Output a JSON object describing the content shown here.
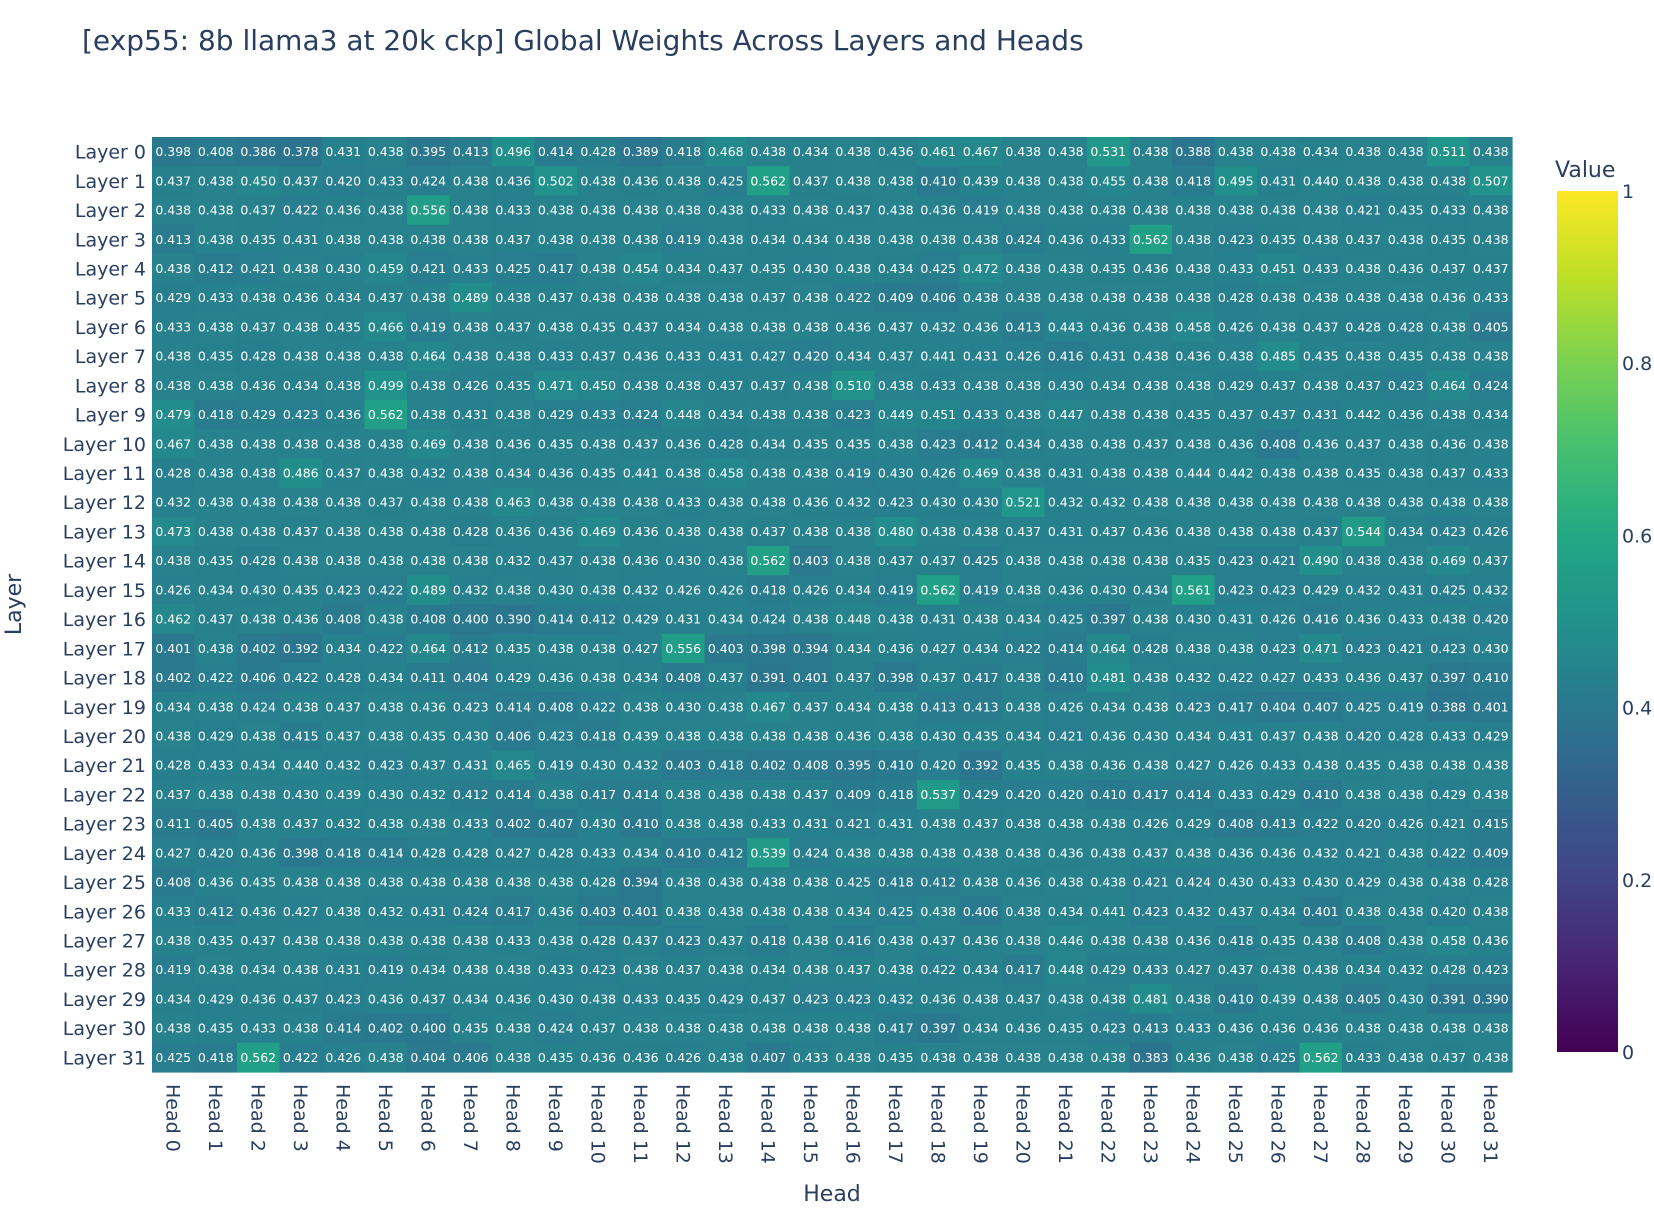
{
  "chart_data": {
    "type": "heatmap",
    "title": "[exp55: 8b llama3 at 20k ckp] Global Weights Across Layers and Heads",
    "xlabel": "Head",
    "ylabel": "Layer",
    "colorscale": "viridis",
    "zmin": 0,
    "zmax": 1,
    "colorbar": {
      "title": "Value",
      "tickvals": [
        0,
        0.2,
        0.4,
        0.6,
        0.8,
        1
      ],
      "ticktext": [
        "0",
        "0.2",
        "0.4",
        "0.6",
        "0.8",
        "1"
      ]
    },
    "x": [
      "Head 0",
      "Head 1",
      "Head 2",
      "Head 3",
      "Head 4",
      "Head 5",
      "Head 6",
      "Head 7",
      "Head 8",
      "Head 9",
      "Head 10",
      "Head 11",
      "Head 12",
      "Head 13",
      "Head 14",
      "Head 15",
      "Head 16",
      "Head 17",
      "Head 18",
      "Head 19",
      "Head 20",
      "Head 21",
      "Head 22",
      "Head 23",
      "Head 24",
      "Head 25",
      "Head 26",
      "Head 27",
      "Head 28",
      "Head 29",
      "Head 30",
      "Head 31"
    ],
    "y": [
      "Layer 0",
      "Layer 1",
      "Layer 2",
      "Layer 3",
      "Layer 4",
      "Layer 5",
      "Layer 6",
      "Layer 7",
      "Layer 8",
      "Layer 9",
      "Layer 10",
      "Layer 11",
      "Layer 12",
      "Layer 13",
      "Layer 14",
      "Layer 15",
      "Layer 16",
      "Layer 17",
      "Layer 18",
      "Layer 19",
      "Layer 20",
      "Layer 21",
      "Layer 22",
      "Layer 23",
      "Layer 24",
      "Layer 25",
      "Layer 26",
      "Layer 27",
      "Layer 28",
      "Layer 29",
      "Layer 30",
      "Layer 31"
    ],
    "z": [
      [
        0.398,
        0.408,
        0.386,
        0.378,
        0.431,
        0.438,
        0.395,
        0.413,
        0.496,
        0.414,
        0.428,
        0.389,
        0.418,
        0.468,
        0.438,
        0.434,
        0.438,
        0.436,
        0.461,
        0.467,
        0.438,
        0.438,
        0.531,
        0.438,
        0.388,
        0.438,
        0.438,
        0.434,
        0.438,
        0.438,
        0.511,
        0.438
      ],
      [
        0.437,
        0.438,
        0.45,
        0.437,
        0.42,
        0.433,
        0.424,
        0.438,
        0.436,
        0.502,
        0.438,
        0.436,
        0.438,
        0.425,
        0.562,
        0.437,
        0.438,
        0.438,
        0.41,
        0.439,
        0.438,
        0.438,
        0.455,
        0.438,
        0.418,
        0.495,
        0.431,
        0.44,
        0.438,
        0.438,
        0.438,
        0.507
      ],
      [
        0.438,
        0.438,
        0.437,
        0.422,
        0.436,
        0.438,
        0.556,
        0.438,
        0.433,
        0.438,
        0.438,
        0.438,
        0.438,
        0.438,
        0.433,
        0.438,
        0.437,
        0.438,
        0.436,
        0.419,
        0.438,
        0.438,
        0.438,
        0.438,
        0.438,
        0.438,
        0.438,
        0.438,
        0.421,
        0.435,
        0.433,
        0.438
      ],
      [
        0.413,
        0.438,
        0.435,
        0.431,
        0.438,
        0.438,
        0.438,
        0.438,
        0.437,
        0.438,
        0.438,
        0.438,
        0.419,
        0.438,
        0.434,
        0.434,
        0.438,
        0.438,
        0.438,
        0.438,
        0.424,
        0.436,
        0.433,
        0.562,
        0.438,
        0.423,
        0.435,
        0.438,
        0.437,
        0.438,
        0.435,
        0.438
      ],
      [
        0.438,
        0.412,
        0.421,
        0.438,
        0.43,
        0.459,
        0.421,
        0.433,
        0.425,
        0.417,
        0.438,
        0.454,
        0.434,
        0.437,
        0.435,
        0.43,
        0.438,
        0.434,
        0.425,
        0.472,
        0.438,
        0.438,
        0.435,
        0.436,
        0.438,
        0.433,
        0.451,
        0.433,
        0.438,
        0.436,
        0.437,
        0.437
      ],
      [
        0.429,
        0.433,
        0.438,
        0.436,
        0.434,
        0.437,
        0.438,
        0.489,
        0.438,
        0.437,
        0.438,
        0.438,
        0.438,
        0.438,
        0.437,
        0.438,
        0.422,
        0.409,
        0.406,
        0.438,
        0.438,
        0.438,
        0.438,
        0.438,
        0.438,
        0.428,
        0.438,
        0.438,
        0.438,
        0.438,
        0.436,
        0.433
      ],
      [
        0.433,
        0.438,
        0.437,
        0.438,
        0.435,
        0.466,
        0.419,
        0.438,
        0.437,
        0.438,
        0.435,
        0.437,
        0.434,
        0.438,
        0.438,
        0.438,
        0.436,
        0.437,
        0.432,
        0.436,
        0.413,
        0.443,
        0.436,
        0.438,
        0.458,
        0.426,
        0.438,
        0.437,
        0.428,
        0.428,
        0.438,
        0.405
      ],
      [
        0.438,
        0.435,
        0.428,
        0.438,
        0.438,
        0.438,
        0.464,
        0.438,
        0.438,
        0.433,
        0.437,
        0.436,
        0.433,
        0.431,
        0.427,
        0.42,
        0.434,
        0.437,
        0.441,
        0.431,
        0.426,
        0.416,
        0.431,
        0.438,
        0.436,
        0.438,
        0.485,
        0.435,
        0.438,
        0.435,
        0.438,
        0.438
      ],
      [
        0.438,
        0.438,
        0.436,
        0.434,
        0.438,
        0.499,
        0.438,
        0.426,
        0.435,
        0.471,
        0.45,
        0.438,
        0.438,
        0.437,
        0.437,
        0.438,
        0.51,
        0.438,
        0.433,
        0.438,
        0.438,
        0.43,
        0.434,
        0.438,
        0.438,
        0.429,
        0.437,
        0.438,
        0.437,
        0.423,
        0.464,
        0.424
      ],
      [
        0.479,
        0.418,
        0.429,
        0.423,
        0.436,
        0.562,
        0.438,
        0.431,
        0.438,
        0.429,
        0.433,
        0.424,
        0.448,
        0.434,
        0.438,
        0.438,
        0.423,
        0.449,
        0.451,
        0.433,
        0.438,
        0.447,
        0.438,
        0.438,
        0.435,
        0.437,
        0.437,
        0.431,
        0.442,
        0.436,
        0.438,
        0.434
      ],
      [
        0.467,
        0.438,
        0.438,
        0.438,
        0.438,
        0.438,
        0.469,
        0.438,
        0.436,
        0.435,
        0.438,
        0.437,
        0.436,
        0.428,
        0.434,
        0.435,
        0.435,
        0.438,
        0.423,
        0.412,
        0.434,
        0.438,
        0.438,
        0.437,
        0.438,
        0.436,
        0.408,
        0.436,
        0.437,
        0.438,
        0.436,
        0.438
      ],
      [
        0.428,
        0.438,
        0.438,
        0.486,
        0.437,
        0.438,
        0.432,
        0.438,
        0.434,
        0.436,
        0.435,
        0.441,
        0.438,
        0.458,
        0.438,
        0.438,
        0.419,
        0.43,
        0.426,
        0.469,
        0.438,
        0.431,
        0.438,
        0.438,
        0.444,
        0.442,
        0.438,
        0.438,
        0.435,
        0.438,
        0.437,
        0.433
      ],
      [
        0.432,
        0.438,
        0.438,
        0.438,
        0.438,
        0.437,
        0.438,
        0.438,
        0.463,
        0.438,
        0.438,
        0.438,
        0.433,
        0.438,
        0.438,
        0.436,
        0.432,
        0.423,
        0.43,
        0.43,
        0.521,
        0.432,
        0.432,
        0.438,
        0.438,
        0.438,
        0.438,
        0.438,
        0.438,
        0.438,
        0.438,
        0.438
      ],
      [
        0.473,
        0.438,
        0.438,
        0.437,
        0.438,
        0.438,
        0.438,
        0.428,
        0.436,
        0.436,
        0.469,
        0.436,
        0.438,
        0.438,
        0.437,
        0.438,
        0.438,
        0.48,
        0.438,
        0.438,
        0.437,
        0.431,
        0.437,
        0.436,
        0.438,
        0.438,
        0.438,
        0.437,
        0.544,
        0.434,
        0.423,
        0.426
      ],
      [
        0.438,
        0.435,
        0.428,
        0.438,
        0.438,
        0.438,
        0.438,
        0.438,
        0.432,
        0.437,
        0.438,
        0.436,
        0.43,
        0.438,
        0.562,
        0.403,
        0.438,
        0.437,
        0.437,
        0.425,
        0.438,
        0.438,
        0.438,
        0.438,
        0.435,
        0.423,
        0.421,
        0.49,
        0.438,
        0.438,
        0.469,
        0.437
      ],
      [
        0.426,
        0.434,
        0.43,
        0.435,
        0.423,
        0.422,
        0.489,
        0.432,
        0.438,
        0.43,
        0.438,
        0.432,
        0.426,
        0.426,
        0.418,
        0.426,
        0.434,
        0.419,
        0.562,
        0.419,
        0.438,
        0.436,
        0.43,
        0.434,
        0.561,
        0.423,
        0.423,
        0.429,
        0.432,
        0.431,
        0.425,
        0.432
      ],
      [
        0.462,
        0.437,
        0.438,
        0.436,
        0.408,
        0.438,
        0.408,
        0.4,
        0.39,
        0.414,
        0.412,
        0.429,
        0.431,
        0.434,
        0.424,
        0.438,
        0.448,
        0.438,
        0.431,
        0.438,
        0.434,
        0.425,
        0.397,
        0.438,
        0.43,
        0.431,
        0.426,
        0.416,
        0.436,
        0.433,
        0.438,
        0.42
      ],
      [
        0.401,
        0.438,
        0.402,
        0.392,
        0.434,
        0.422,
        0.464,
        0.412,
        0.435,
        0.438,
        0.438,
        0.427,
        0.556,
        0.403,
        0.398,
        0.394,
        0.434,
        0.436,
        0.427,
        0.434,
        0.422,
        0.414,
        0.464,
        0.428,
        0.438,
        0.438,
        0.423,
        0.471,
        0.423,
        0.421,
        0.423,
        0.43
      ],
      [
        0.402,
        0.422,
        0.406,
        0.422,
        0.428,
        0.434,
        0.411,
        0.404,
        0.429,
        0.436,
        0.438,
        0.434,
        0.408,
        0.437,
        0.391,
        0.401,
        0.437,
        0.398,
        0.437,
        0.417,
        0.438,
        0.41,
        0.481,
        0.438,
        0.432,
        0.422,
        0.427,
        0.433,
        0.436,
        0.437,
        0.397,
        0.41
      ],
      [
        0.434,
        0.438,
        0.424,
        0.438,
        0.437,
        0.438,
        0.436,
        0.423,
        0.414,
        0.408,
        0.422,
        0.438,
        0.43,
        0.438,
        0.467,
        0.437,
        0.434,
        0.438,
        0.413,
        0.413,
        0.438,
        0.426,
        0.434,
        0.438,
        0.423,
        0.417,
        0.404,
        0.407,
        0.425,
        0.419,
        0.388,
        0.401
      ],
      [
        0.438,
        0.429,
        0.438,
        0.415,
        0.437,
        0.438,
        0.435,
        0.43,
        0.406,
        0.423,
        0.418,
        0.439,
        0.438,
        0.438,
        0.438,
        0.438,
        0.436,
        0.438,
        0.43,
        0.435,
        0.434,
        0.421,
        0.436,
        0.43,
        0.434,
        0.431,
        0.437,
        0.438,
        0.42,
        0.428,
        0.433,
        0.429
      ],
      [
        0.428,
        0.433,
        0.434,
        0.44,
        0.432,
        0.423,
        0.437,
        0.431,
        0.465,
        0.419,
        0.43,
        0.432,
        0.403,
        0.418,
        0.402,
        0.408,
        0.395,
        0.41,
        0.42,
        0.392,
        0.435,
        0.438,
        0.436,
        0.438,
        0.427,
        0.426,
        0.433,
        0.438,
        0.435,
        0.438,
        0.438,
        0.438
      ],
      [
        0.437,
        0.438,
        0.438,
        0.43,
        0.439,
        0.43,
        0.432,
        0.412,
        0.414,
        0.438,
        0.417,
        0.414,
        0.438,
        0.438,
        0.438,
        0.437,
        0.409,
        0.418,
        0.537,
        0.429,
        0.42,
        0.42,
        0.41,
        0.417,
        0.414,
        0.433,
        0.429,
        0.41,
        0.438,
        0.438,
        0.429,
        0.438
      ],
      [
        0.411,
        0.405,
        0.438,
        0.437,
        0.432,
        0.438,
        0.438,
        0.433,
        0.402,
        0.407,
        0.43,
        0.41,
        0.438,
        0.438,
        0.433,
        0.431,
        0.421,
        0.431,
        0.438,
        0.437,
        0.438,
        0.438,
        0.438,
        0.426,
        0.429,
        0.408,
        0.413,
        0.422,
        0.42,
        0.426,
        0.421,
        0.415
      ],
      [
        0.427,
        0.42,
        0.436,
        0.398,
        0.418,
        0.414,
        0.428,
        0.428,
        0.427,
        0.428,
        0.433,
        0.434,
        0.41,
        0.412,
        0.539,
        0.424,
        0.438,
        0.438,
        0.438,
        0.438,
        0.438,
        0.436,
        0.438,
        0.437,
        0.438,
        0.436,
        0.436,
        0.432,
        0.421,
        0.438,
        0.422,
        0.409
      ],
      [
        0.408,
        0.436,
        0.435,
        0.438,
        0.438,
        0.438,
        0.438,
        0.438,
        0.438,
        0.438,
        0.428,
        0.394,
        0.438,
        0.438,
        0.438,
        0.438,
        0.425,
        0.418,
        0.412,
        0.438,
        0.436,
        0.438,
        0.438,
        0.421,
        0.424,
        0.43,
        0.433,
        0.43,
        0.429,
        0.438,
        0.438,
        0.428
      ],
      [
        0.433,
        0.412,
        0.436,
        0.427,
        0.438,
        0.432,
        0.431,
        0.424,
        0.417,
        0.436,
        0.403,
        0.401,
        0.438,
        0.438,
        0.438,
        0.438,
        0.434,
        0.425,
        0.438,
        0.406,
        0.438,
        0.434,
        0.441,
        0.423,
        0.432,
        0.437,
        0.434,
        0.401,
        0.438,
        0.438,
        0.42,
        0.438
      ],
      [
        0.438,
        0.435,
        0.437,
        0.438,
        0.438,
        0.438,
        0.438,
        0.438,
        0.433,
        0.438,
        0.428,
        0.437,
        0.423,
        0.437,
        0.418,
        0.438,
        0.416,
        0.438,
        0.437,
        0.436,
        0.438,
        0.446,
        0.438,
        0.438,
        0.436,
        0.418,
        0.435,
        0.438,
        0.408,
        0.438,
        0.458,
        0.436
      ],
      [
        0.419,
        0.438,
        0.434,
        0.438,
        0.431,
        0.419,
        0.434,
        0.438,
        0.438,
        0.433,
        0.423,
        0.438,
        0.437,
        0.438,
        0.434,
        0.438,
        0.437,
        0.438,
        0.422,
        0.434,
        0.417,
        0.448,
        0.429,
        0.433,
        0.427,
        0.437,
        0.438,
        0.438,
        0.434,
        0.432,
        0.428,
        0.423
      ],
      [
        0.434,
        0.429,
        0.436,
        0.437,
        0.423,
        0.436,
        0.437,
        0.434,
        0.436,
        0.43,
        0.438,
        0.433,
        0.435,
        0.429,
        0.437,
        0.423,
        0.423,
        0.432,
        0.436,
        0.438,
        0.437,
        0.438,
        0.438,
        0.481,
        0.438,
        0.41,
        0.439,
        0.438,
        0.405,
        0.43,
        0.391,
        0.39
      ],
      [
        0.438,
        0.435,
        0.433,
        0.438,
        0.414,
        0.402,
        0.4,
        0.435,
        0.438,
        0.424,
        0.437,
        0.438,
        0.438,
        0.438,
        0.438,
        0.438,
        0.438,
        0.417,
        0.397,
        0.434,
        0.436,
        0.435,
        0.423,
        0.413,
        0.433,
        0.436,
        0.436,
        0.436,
        0.438,
        0.438,
        0.438,
        0.438
      ],
      [
        0.425,
        0.418,
        0.562,
        0.422,
        0.426,
        0.438,
        0.404,
        0.406,
        0.438,
        0.435,
        0.436,
        0.436,
        0.426,
        0.438,
        0.407,
        0.433,
        0.438,
        0.435,
        0.438,
        0.438,
        0.438,
        0.438,
        0.438,
        0.383,
        0.436,
        0.438,
        0.425,
        0.562,
        0.433,
        0.438,
        0.437,
        0.438
      ]
    ]
  }
}
